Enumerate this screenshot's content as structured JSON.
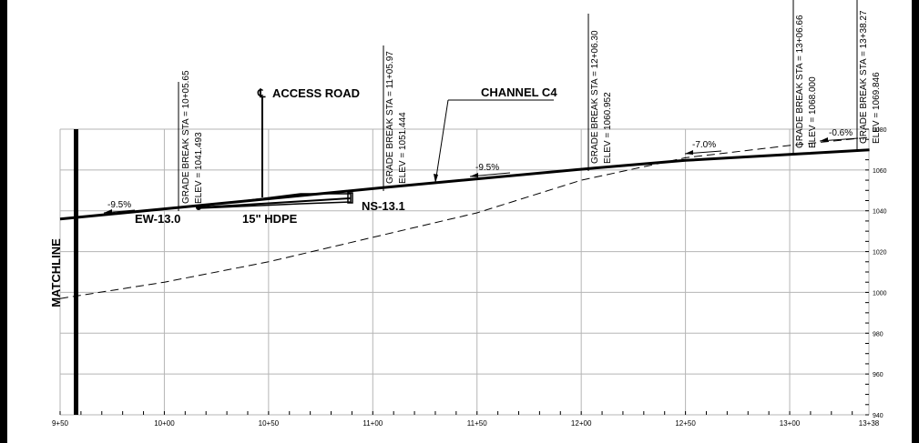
{
  "sheet": {
    "matchline_label": "MATCHLINE",
    "station_labels": [
      "9+50",
      "10+00",
      "10+50",
      "11+00",
      "11+50",
      "12+00",
      "12+50",
      "13+00",
      "13+38"
    ],
    "elevation_labels": [
      "1080",
      "1060",
      "1040",
      "1020",
      "1000",
      "980",
      "960",
      "940"
    ]
  },
  "profile": {
    "stations_ft": [
      950,
      1000,
      1050,
      1100,
      1150,
      1200,
      1250,
      1300,
      1338
    ],
    "elevations_ft": [
      1080,
      1060,
      1040,
      1020,
      1000,
      980,
      960,
      940
    ],
    "proposed_grade": [
      {
        "sta": 950,
        "elev": 1036.0
      },
      {
        "sta": 1005.65,
        "elev": 1041.493
      },
      {
        "sta": 1105.97,
        "elev": 1051.444
      },
      {
        "sta": 1206.3,
        "elev": 1060.952
      },
      {
        "sta": 1250,
        "elev": 1064.7
      },
      {
        "sta": 1306.66,
        "elev": 1068.0
      },
      {
        "sta": 1338.27,
        "elev": 1069.846
      }
    ],
    "existing_grade": [
      {
        "sta": 950,
        "elev": 997
      },
      {
        "sta": 1000,
        "elev": 1005
      },
      {
        "sta": 1050,
        "elev": 1015
      },
      {
        "sta": 1100,
        "elev": 1027
      },
      {
        "sta": 1150,
        "elev": 1039
      },
      {
        "sta": 1200,
        "elev": 1055
      },
      {
        "sta": 1250,
        "elev": 1066
      },
      {
        "sta": 1300,
        "elev": 1072
      },
      {
        "sta": 1338,
        "elev": 1076
      }
    ]
  },
  "grade_breaks": [
    {
      "sta_text": "GRADE BREAK STA = 10+05.65",
      "elev_text": "ELEV = 1041.493"
    },
    {
      "sta_text": "GRADE BREAK STA = 11+05.97",
      "elev_text": "ELEV = 1051.444"
    },
    {
      "sta_text": "GRADE BREAK STA = 12+06.30",
      "elev_text": "ELEV = 1060.952"
    },
    {
      "sta_text": "GRADE BREAK STA = 13+06.66",
      "elev_text": "ELEV = 1068.000"
    },
    {
      "sta_text": "GRADE BREAK STA = 13+38.27",
      "elev_text": "ELEV = 1069.846"
    }
  ],
  "slopes": [
    {
      "text": "-9.5%"
    },
    {
      "text": "-9.5%"
    },
    {
      "text": "-7.0%"
    },
    {
      "text": "-0.6%"
    }
  ],
  "labels": {
    "access_road": "ACCESS ROAD",
    "channel": "CHANNEL C4",
    "ew": "EW-13.0",
    "ns": "NS-13.1",
    "pipe": "15\" HDPE"
  }
}
